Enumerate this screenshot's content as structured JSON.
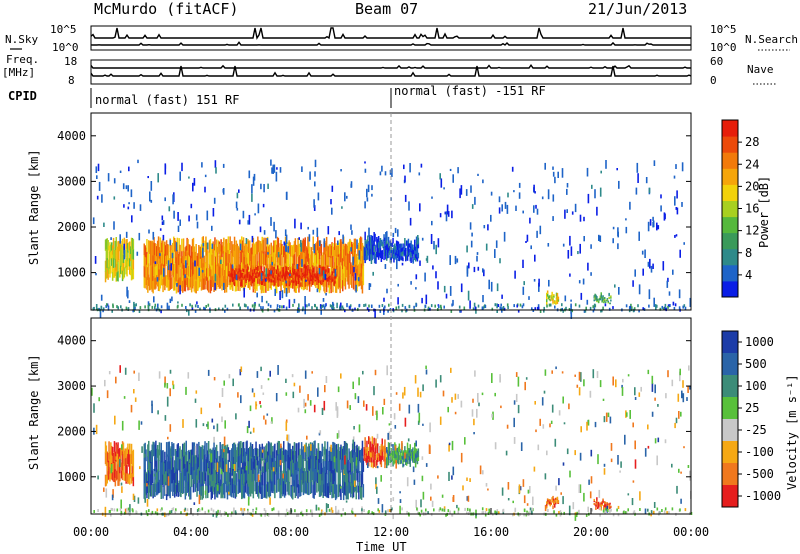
{
  "header": {
    "title": "McMurdo (fitACF)",
    "beam": "Beam 07",
    "date": "21/Jun/2013"
  },
  "top_panels": {
    "nsky_label": "N.Sky",
    "nsky_ticks": [
      "10^5",
      "10^0"
    ],
    "nsearch_label": "N.Search",
    "nsearch_ticks": [
      "10^5",
      "10^0"
    ],
    "freq_label_line1": "Freq.",
    "freq_label_line2": "[MHz]",
    "freq_ticks": [
      "18",
      "8"
    ],
    "nave_label": "Nave",
    "nave_ticks": [
      "60",
      "0"
    ],
    "cpid_label": "CPID",
    "cpid_segments": [
      {
        "text": "normal (fast) 151 RF",
        "start_hour": 0
      },
      {
        "text": "normal (fast) -151 RF",
        "start_hour": 12
      }
    ]
  },
  "chart_data": [
    {
      "type": "heatmap",
      "name": "power",
      "ylabel": "Slant Range [km]",
      "y_ticks": [
        "1000",
        "2000",
        "3000",
        "4000"
      ],
      "ylim": [
        180,
        4500
      ],
      "xlim": [
        0,
        24
      ],
      "colorbar": {
        "label": "Power [dB]",
        "ticks": [
          "4",
          "8",
          "12",
          "16",
          "20",
          "24",
          "28"
        ],
        "range": [
          0,
          32
        ],
        "colors": [
          "#0a1ee6",
          "#1e64c8",
          "#2e8a8a",
          "#3a9a5a",
          "#55b83c",
          "#a8d020",
          "#f2d20a",
          "#f5a50a",
          "#f27a0a",
          "#ec4a0a",
          "#e61e0a"
        ]
      },
      "regions": [
        {
          "x0": 0.55,
          "x1": 1.7,
          "y0": 800,
          "y1": 1800,
          "level": 0.55
        },
        {
          "x0": 2.1,
          "x1": 10.9,
          "y0": 550,
          "y1": 1800,
          "level": 0.72
        },
        {
          "x0": 5.5,
          "x1": 9.8,
          "y0": 700,
          "y1": 1200,
          "level": 0.92
        },
        {
          "x0": 10.9,
          "x1": 11.8,
          "y0": 1200,
          "y1": 1900,
          "level": 0.08
        },
        {
          "x0": 11.8,
          "x1": 13.1,
          "y0": 1200,
          "y1": 1800,
          "level": 0.08
        },
        {
          "x0": 18.2,
          "x1": 18.7,
          "y0": 300,
          "y1": 600,
          "level": 0.55
        },
        {
          "x0": 20.1,
          "x1": 20.8,
          "y0": 250,
          "y1": 450,
          "level": 0.35
        }
      ]
    },
    {
      "type": "heatmap",
      "name": "velocity",
      "ylabel": "Slant Range [km]",
      "y_ticks": [
        "1000",
        "2000",
        "3000",
        "4000"
      ],
      "ylim": [
        180,
        4500
      ],
      "xlim": [
        0,
        24
      ],
      "x_ticks": [
        "00:00",
        "04:00",
        "08:00",
        "12:00",
        "16:00",
        "20:00",
        "00:00"
      ],
      "xlabel": "Time UT",
      "colorbar": {
        "label": "Velocity [m s⁻¹]",
        "ticks": [
          "1000",
          "500",
          "100",
          "25",
          "-25",
          "-100",
          "-500",
          "-1000"
        ],
        "colors": [
          "#1c3ca8",
          "#2a64a8",
          "#3c8c78",
          "#58c03a",
          "#c8c8c8",
          "#f5a814",
          "#f0781e",
          "#e61e1e"
        ]
      },
      "regions": [
        {
          "x0": 0.55,
          "x1": 1.7,
          "y0": 800,
          "y1": 1800,
          "level": 0.8
        },
        {
          "x0": 2.1,
          "x1": 10.9,
          "y0": 500,
          "y1": 1800,
          "level": 0.2
        },
        {
          "x0": 10.9,
          "x1": 11.8,
          "y0": 1200,
          "y1": 1900,
          "level": 0.85
        },
        {
          "x0": 11.8,
          "x1": 13.1,
          "y0": 1200,
          "y1": 1800,
          "level": 0.35
        },
        {
          "x0": 18.2,
          "x1": 18.7,
          "y0": 300,
          "y1": 600,
          "level": 0.8
        },
        {
          "x0": 20.1,
          "x1": 20.8,
          "y0": 250,
          "y1": 450,
          "level": 0.85
        }
      ]
    }
  ]
}
